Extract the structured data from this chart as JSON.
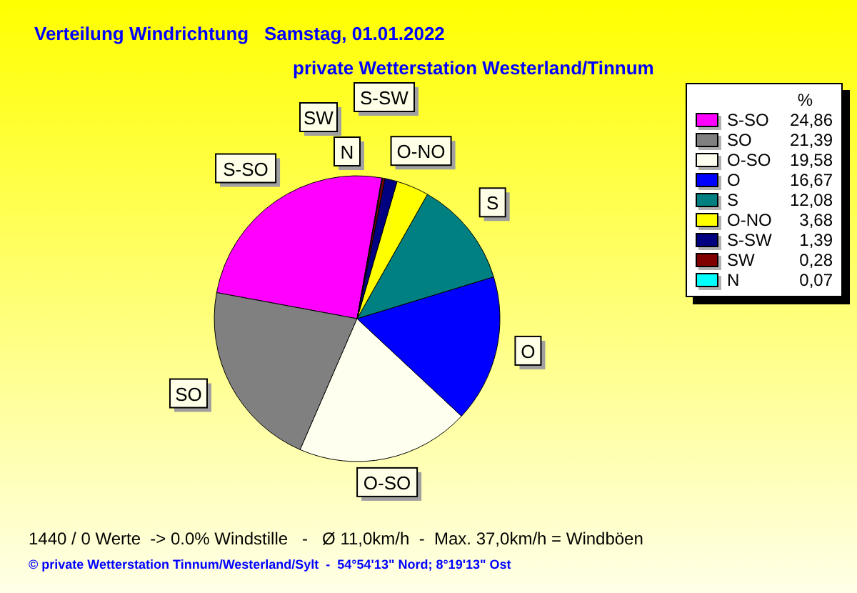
{
  "chart_data": {
    "type": "pie",
    "title": "Verteilung Windrichtung   Samstag, 01.01.2022",
    "subtitle": "private Wetterstation Westerland/Tinnum",
    "legend_title": "%",
    "legend": "top right",
    "categories": [
      "S-SO",
      "SO",
      "O-SO",
      "O",
      "S",
      "O-NO",
      "S-SW",
      "SW",
      "N"
    ],
    "values": [
      24.86,
      21.39,
      19.58,
      16.67,
      12.08,
      3.68,
      1.39,
      0.28,
      0.07
    ],
    "value_labels": [
      "24,86",
      "21,39",
      "19,58",
      "16,67",
      "12,08",
      "3,68",
      "1,39",
      "0,28",
      "0,07"
    ],
    "colors": [
      "#ff00ff",
      "#808080",
      "#fffff0",
      "#0000ff",
      "#008080",
      "#ffff00",
      "#000080",
      "#800000",
      "#00ffff"
    ],
    "annotations": [
      "1440 / 0 Werte  -> 0.0% Windstille   -   Ø 11,0km/h  -  Max. 37,0km/h = Windböen",
      "© private Wetterstation Tinnum/Westerland/Sylt  -  54°54'13\" Nord; 8°19'13\" Ost"
    ]
  }
}
